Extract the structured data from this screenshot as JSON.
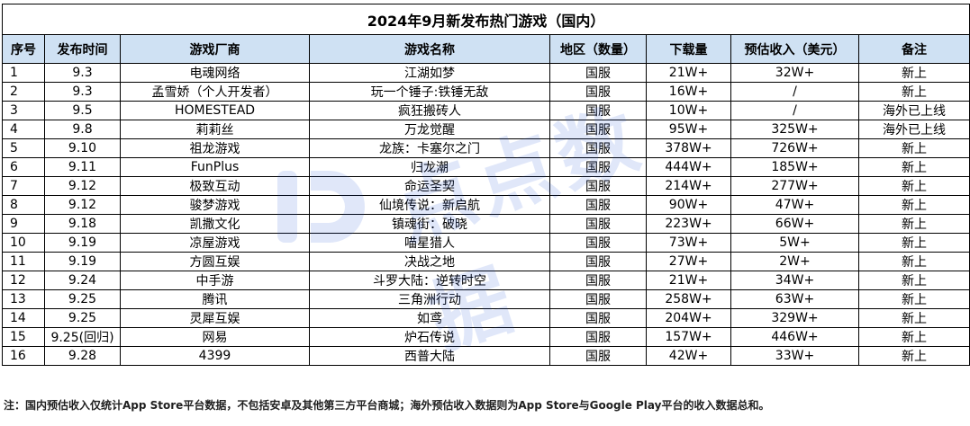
{
  "title": "2024年9月新发布热门游戏（国内）",
  "headers": [
    "序号",
    "发布时间",
    "游戏厂商",
    "游戏名称",
    "地区（数量）",
    "下载量",
    "预估收入（美元）",
    "备注"
  ],
  "rows": [
    [
      "1",
      "9.3",
      "电魂网络",
      "江湖如梦",
      "国服",
      "21W+",
      "32W+",
      "新上"
    ],
    [
      "2",
      "9.3",
      "孟雪娇（个人开发者）",
      "玩一个锤子:铁锤无敌",
      "国服",
      "16W+",
      "/",
      "新上"
    ],
    [
      "3",
      "9.5",
      "HOMESTEAD",
      "疯狂搬砖人",
      "国服",
      "10W+",
      "/",
      "海外已上线"
    ],
    [
      "4",
      "9.8",
      "莉莉丝",
      "万龙觉醒",
      "国服",
      "95W+",
      "325W+",
      "海外已上线"
    ],
    [
      "5",
      "9.10",
      "祖龙游戏",
      "龙族：卡塞尔之门",
      "国服",
      "378W+",
      "726W+",
      "新上"
    ],
    [
      "6",
      "9.11",
      "FunPlus",
      "归龙潮",
      "国服",
      "444W+",
      "185W+",
      "新上"
    ],
    [
      "7",
      "9.12",
      "极致互动",
      "命运圣契",
      "国服",
      "214W+",
      "277W+",
      "新上"
    ],
    [
      "8",
      "9.12",
      "骏梦游戏",
      "仙境传说：新启航",
      "国服",
      "90W+",
      "47W+",
      "新上"
    ],
    [
      "9",
      "9.18",
      "凯撒文化",
      "镇魂街：破晓",
      "国服",
      "223W+",
      "66W+",
      "新上"
    ],
    [
      "10",
      "9.19",
      "凉屋游戏",
      "喵星猎人",
      "国服",
      "73W+",
      "5W+",
      "新上"
    ],
    [
      "11",
      "9.19",
      "方圆互娱",
      "决战之地",
      "国服",
      "27W+",
      "2W+",
      "新上"
    ],
    [
      "12",
      "9.24",
      "中手游",
      "斗罗大陆：逆转时空",
      "国服",
      "21W+",
      "34W+",
      "新上"
    ],
    [
      "13",
      "9.25",
      "腾讯",
      "三角洲行动",
      "国服",
      "258W+",
      "63W+",
      "新上"
    ],
    [
      "14",
      "9.25",
      "灵犀互娱",
      "如鸢",
      "国服",
      "204W+",
      "329W+",
      "新上"
    ],
    [
      "15",
      "9.25(回归)",
      "网易",
      "炉石传说",
      "国服",
      "157W+",
      "446W+",
      "新上"
    ],
    [
      "16",
      "9.28",
      "4399",
      "西普大陆",
      "国服",
      "42W+",
      "33W+",
      "新上"
    ]
  ],
  "note": "注：国内预估收入仅统计App Store平台数据，不包括安卓及其他第三方平台商城；海外预估收入数据则为App Store与Google Play平台的收入数据总和。",
  "watermark_text": "点点数据",
  "colors": {
    "header_bg": "#cfe1f3",
    "border": "#000000",
    "watermark": "#1b4fd8"
  }
}
